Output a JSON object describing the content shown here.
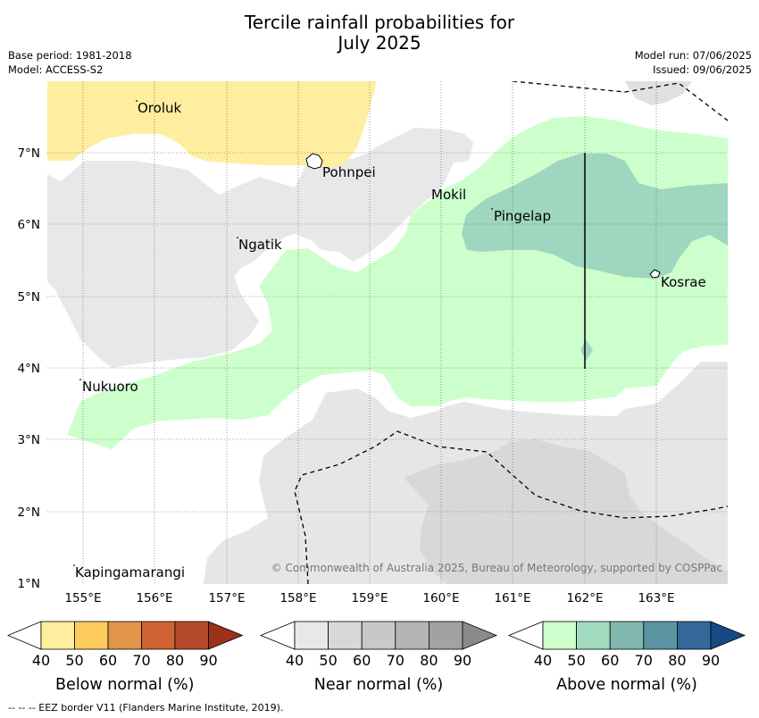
{
  "title": [
    "Tercile rainfall probabilities for",
    "July 2025"
  ],
  "meta_left": [
    "Base period: 1981-2018",
    "Model: ACCESS-S2"
  ],
  "meta_right": [
    "Model run: 07/06/2025",
    "Issued: 09/06/2025"
  ],
  "lat_labels": [
    "7°N",
    "6°N",
    "5°N",
    "4°N",
    "3°N",
    "2°N",
    "1°N"
  ],
  "lon_labels": [
    "155°E",
    "156°E",
    "157°E",
    "158°E",
    "159°E",
    "160°E",
    "161°E",
    "162°E",
    "163°E"
  ],
  "places": [
    "Oroluk",
    "Pohnpei",
    "Mokil",
    "Ngatik",
    "Pingelap",
    "Kosrae",
    "Nukuoro",
    "Kapingamarangi"
  ],
  "copyright": "© Commonwealth of Australia 2025, Bureau of Meteorology, supported by COSPPac",
  "colorbars": [
    {
      "label": "Below normal (%)",
      "ticks": [
        "40",
        "50",
        "60",
        "70",
        "80",
        "90"
      ],
      "colors": [
        "#ffeda0",
        "#fecc5c",
        "#e0954b",
        "#cf6432",
        "#b34a29",
        "#9c3119"
      ]
    },
    {
      "label": "Near normal (%)",
      "ticks": [
        "40",
        "50",
        "60",
        "70",
        "80",
        "90"
      ],
      "colors": [
        "#e8e8e8",
        "#d8d8d8",
        "#c8c8c8",
        "#b4b4b4",
        "#a2a2a2",
        "#8a8a8a"
      ]
    },
    {
      "label": "Above normal (%)",
      "ticks": [
        "40",
        "50",
        "60",
        "70",
        "80",
        "90"
      ],
      "colors": [
        "#ccffcc",
        "#a0dbbf",
        "#80b8b0",
        "#5b95a3",
        "#34689a",
        "#174a84"
      ]
    }
  ],
  "footer": "--  --  -- EEZ border V11 (Flanders Marine Institute, 2019)."
}
